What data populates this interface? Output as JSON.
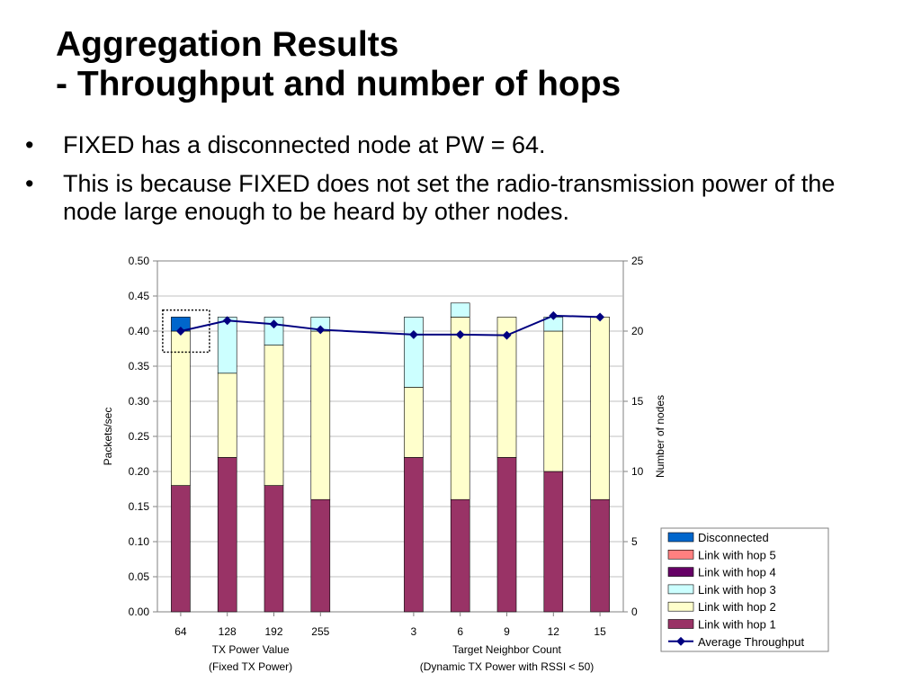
{
  "slide": {
    "title_line1": "Aggregation Results",
    "title_line2": "- Throughput and number of hops",
    "bullets": [
      "FIXED has a disconnected node at PW = 64.",
      "This is because FIXED does not set the radio-transmission power of the node large enough to be heard by other nodes."
    ]
  },
  "chart_data": {
    "type": "bar",
    "stacked": true,
    "categories": [
      "64",
      "128",
      "192",
      "255",
      "3",
      "6",
      "9",
      "12",
      "15"
    ],
    "category_groups": [
      {
        "label_line1": "TX Power Value",
        "label_line2": "(Fixed TX Power)",
        "categories": [
          "64",
          "128",
          "192",
          "255"
        ]
      },
      {
        "label_line1": "Target Neighbor Count",
        "label_line2": "(Dynamic TX Power with RSSI < 50)",
        "categories": [
          "3",
          "6",
          "9",
          "12",
          "15"
        ]
      }
    ],
    "series": [
      {
        "name": "Link with hop 1",
        "axis": "right",
        "color": "#993366",
        "values": [
          9,
          11,
          9,
          8,
          11,
          8,
          11,
          10,
          8
        ]
      },
      {
        "name": "Link with hop 2",
        "axis": "right",
        "color": "#FFFFCC",
        "values": [
          11,
          6,
          10,
          12,
          5,
          13,
          10,
          10,
          13
        ]
      },
      {
        "name": "Link with hop 3",
        "axis": "right",
        "color": "#CCFFFF",
        "values": [
          0,
          4,
          2,
          1,
          5,
          1,
          0,
          1,
          0
        ]
      },
      {
        "name": "Link with hop 4",
        "axis": "right",
        "color": "#660066",
        "values": [
          0,
          0,
          0,
          0,
          0,
          0,
          0,
          0,
          0
        ]
      },
      {
        "name": "Link with hop 5",
        "axis": "right",
        "color": "#FF8080",
        "values": [
          0,
          0,
          0,
          0,
          0,
          0,
          0,
          0,
          0
        ]
      },
      {
        "name": "Disconnected",
        "axis": "right",
        "color": "#0066CC",
        "values": [
          1,
          0,
          0,
          0,
          0,
          0,
          0,
          0,
          0
        ]
      }
    ],
    "line_series": {
      "name": "Average Throughput",
      "axis": "left",
      "color": "#000080",
      "values": [
        0.4,
        0.415,
        0.41,
        0.402,
        0.395,
        0.395,
        0.394,
        0.422,
        0.42
      ]
    },
    "ylabel": "Packets/sec",
    "ylim": [
      0,
      0.5
    ],
    "yticks": [
      "0.00",
      "0.05",
      "0.10",
      "0.15",
      "0.20",
      "0.25",
      "0.30",
      "0.35",
      "0.40",
      "0.45",
      "0.50"
    ],
    "y2label": "Number of nodes",
    "y2lim": [
      0,
      25
    ],
    "y2ticks": [
      "0",
      "5",
      "10",
      "15",
      "20",
      "25"
    ],
    "legend_order": [
      "Disconnected",
      "Link with hop 5",
      "Link with hop 4",
      "Link with hop 3",
      "Link with hop 2",
      "Link with hop 1",
      "Average Throughput"
    ],
    "legend_position": "bottom-right",
    "grid": true,
    "highlight_category": "64"
  }
}
